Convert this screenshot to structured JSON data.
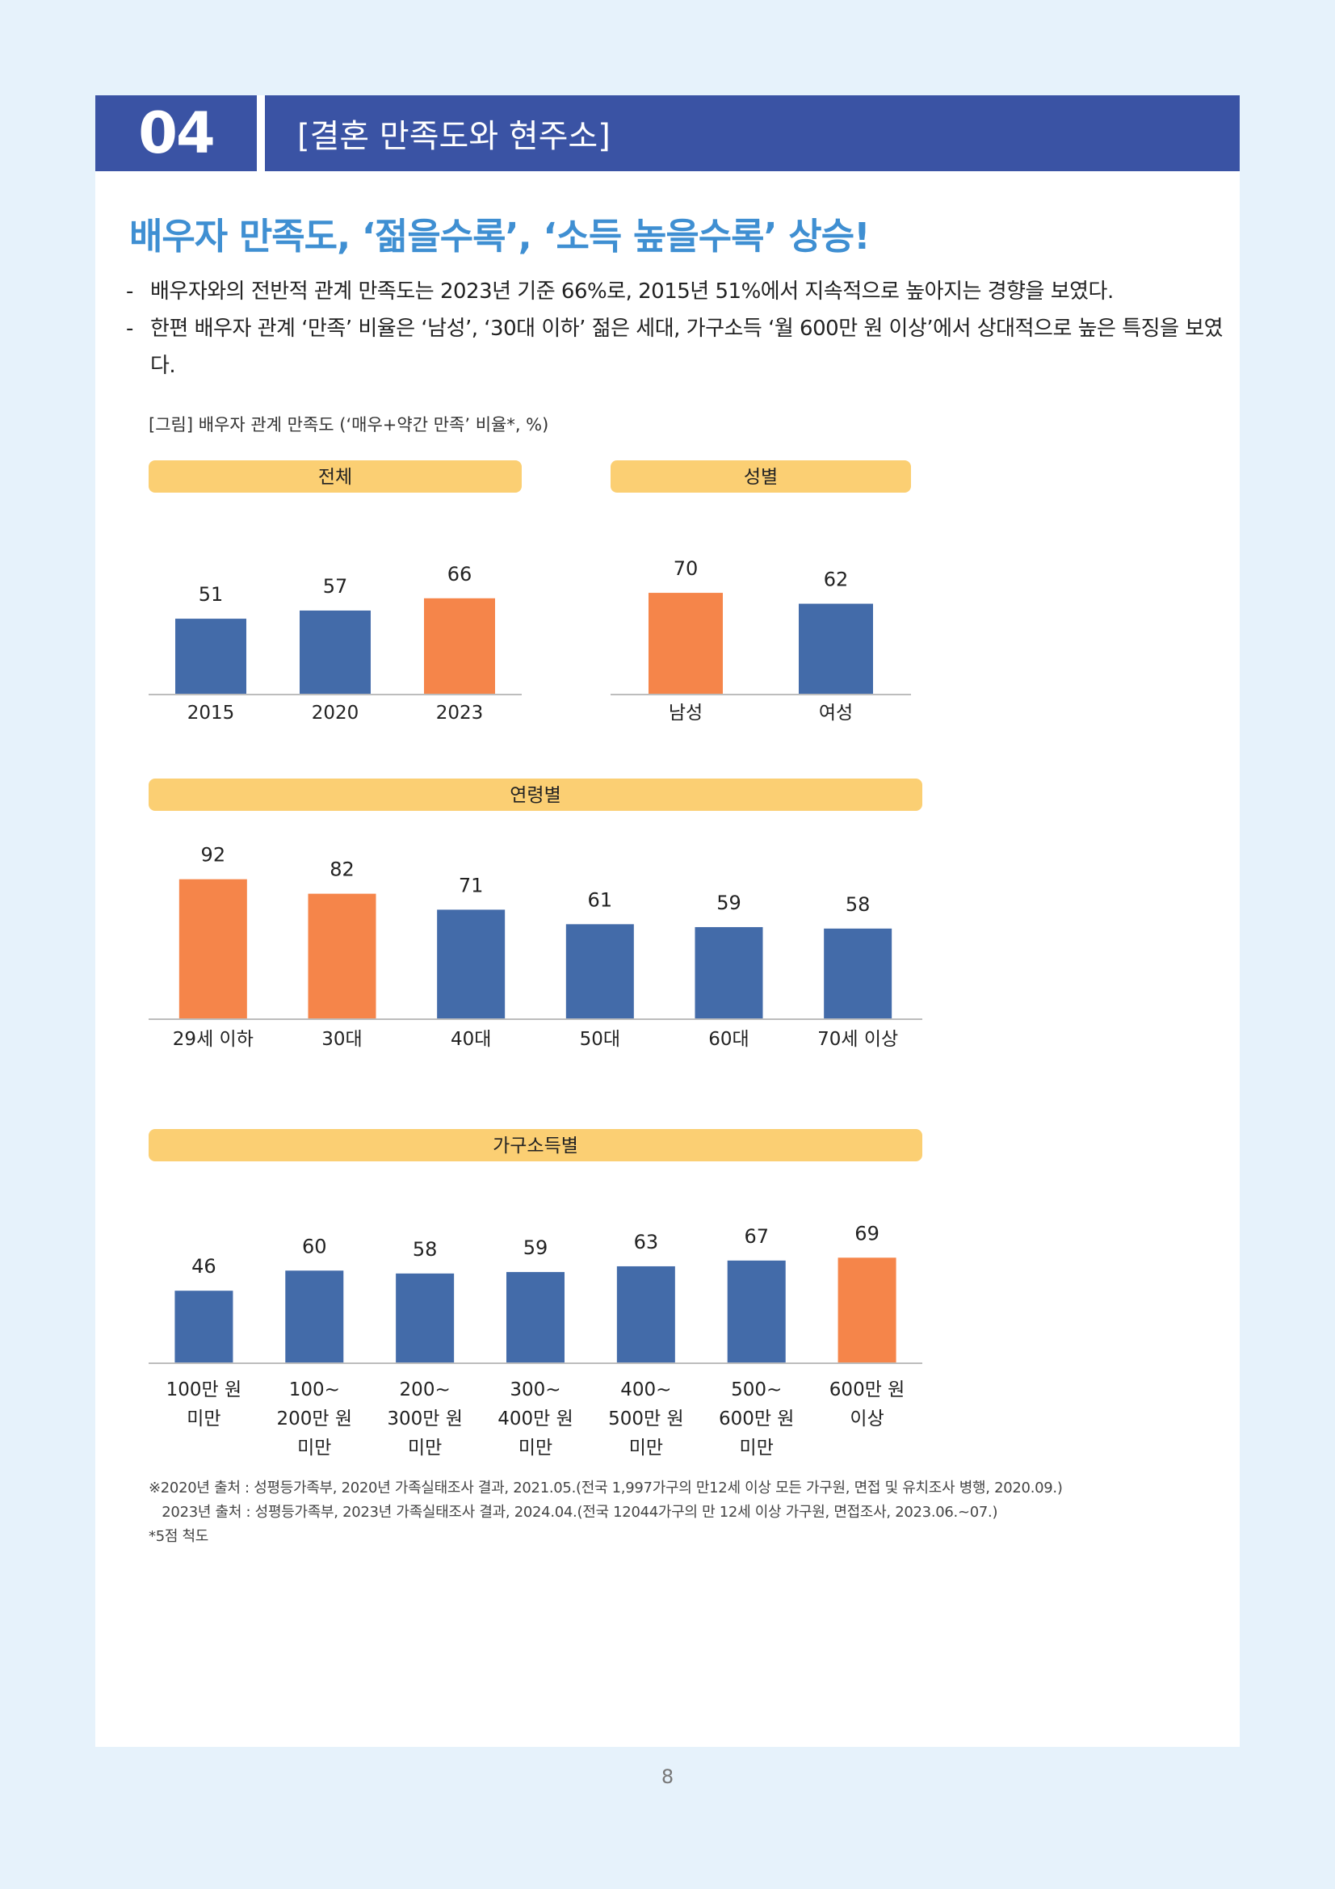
{
  "header": {
    "section_number": "04",
    "section_title": "[결혼 만족도와 현주소]"
  },
  "headline": "배우자 만족도, ‘젊을수록’, ‘소득 높을수록’ 상승!",
  "bullets": [
    "배우자와의 전반적 관계 만족도는 2023년 기준 66%로, 2015년 51%에서 지속적으로 높아지는 경향을 보였다.",
    "한편 배우자 관계 ‘만족’ 비율은 ‘남성’, ‘30대 이하’ 젊은 세대, 가구소득 ‘월 600만 원 이상’에서 상대적으로 높은 특징을 보였다."
  ],
  "figure_caption": "[그림] 배우자 관계 만족도 (‘매우+약간 만족’ 비율*, %)",
  "colors": {
    "blue": "#436ba9",
    "orange": "#f5854a",
    "label_bar": "#fbcf73",
    "header": "#3a53a4",
    "headline": "#3f8fd2"
  },
  "chart_data": [
    {
      "type": "bar",
      "title": "전체",
      "categories": [
        "2015",
        "2020",
        "2023"
      ],
      "values": [
        51,
        57,
        66
      ],
      "highlight": [
        false,
        false,
        true
      ],
      "ylim": [
        0,
        100
      ]
    },
    {
      "type": "bar",
      "title": "성별",
      "categories": [
        "남성",
        "여성"
      ],
      "values": [
        70,
        62
      ],
      "highlight": [
        true,
        false
      ],
      "ylim": [
        0,
        100
      ]
    },
    {
      "type": "bar",
      "title": "연령별",
      "categories": [
        "29세 이하",
        "30대",
        "40대",
        "50대",
        "60대",
        "70세 이상"
      ],
      "values": [
        92,
        82,
        71,
        61,
        59,
        58
      ],
      "highlight": [
        true,
        true,
        false,
        false,
        false,
        false
      ],
      "ylim": [
        0,
        100
      ]
    },
    {
      "type": "bar",
      "title": "가구소득별",
      "categories": [
        "100만 원\n미만",
        "100~\n200만 원\n미만",
        "200~\n300만 원\n미만",
        "300~\n400만 원\n미만",
        "400~\n500만 원\n미만",
        "500~\n600만 원\n미만",
        "600만 원\n이상"
      ],
      "values": [
        46,
        60,
        58,
        59,
        63,
        67,
        69
      ],
      "highlight": [
        false,
        false,
        false,
        false,
        false,
        false,
        true
      ],
      "ylim": [
        0,
        100
      ]
    }
  ],
  "footnote": [
    "※2020년 출처 : 성평등가족부, 2020년 가족실태조사 결과, 2021.05.(전국 1,997가구의 만12세 이상 모든 가구원, 면접 및 유치조사 병행, 2020.09.)",
    "   2023년 출처 : 성평등가족부, 2023년 가족실태조사 결과, 2024.04.(전국 12044가구의 만 12세 이상 가구원, 면접조사, 2023.06.~07.)",
    "*5점 척도"
  ],
  "page_number": "8"
}
